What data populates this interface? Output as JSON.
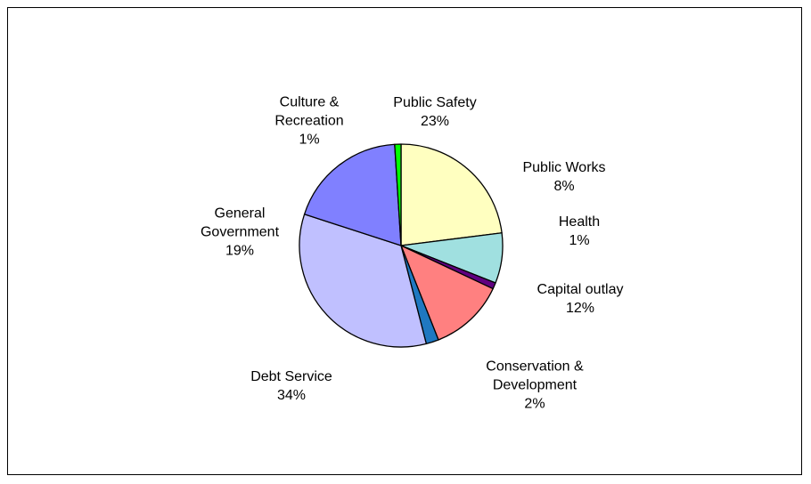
{
  "chart_data": {
    "type": "pie",
    "title": "",
    "slices": [
      {
        "label_lines": [
          "Public Safety"
        ],
        "pct_label": "23%",
        "value": 23,
        "color": "#ffffc0"
      },
      {
        "label_lines": [
          "Public Works"
        ],
        "pct_label": "8%",
        "value": 8,
        "color": "#a0e0e0"
      },
      {
        "label_lines": [
          "Health"
        ],
        "pct_label": "1%",
        "value": 1,
        "color": "#600080"
      },
      {
        "label_lines": [
          "Capital outlay"
        ],
        "pct_label": "12%",
        "value": 12,
        "color": "#ff8080"
      },
      {
        "label_lines": [
          "Conservation &",
          "Development"
        ],
        "pct_label": "2%",
        "value": 2,
        "color": "#1f78c1"
      },
      {
        "label_lines": [
          "Debt Service"
        ],
        "pct_label": "34%",
        "value": 34,
        "color": "#c0c0ff"
      },
      {
        "label_lines": [
          "General",
          "Government"
        ],
        "pct_label": "19%",
        "value": 19,
        "color": "#8080ff"
      },
      {
        "label_lines": [
          "Culture &",
          "Recreation"
        ],
        "pct_label": "1%",
        "value": 1,
        "color": "#00ff00"
      }
    ],
    "start": "top",
    "direction": "clockwise",
    "legend": "none"
  }
}
